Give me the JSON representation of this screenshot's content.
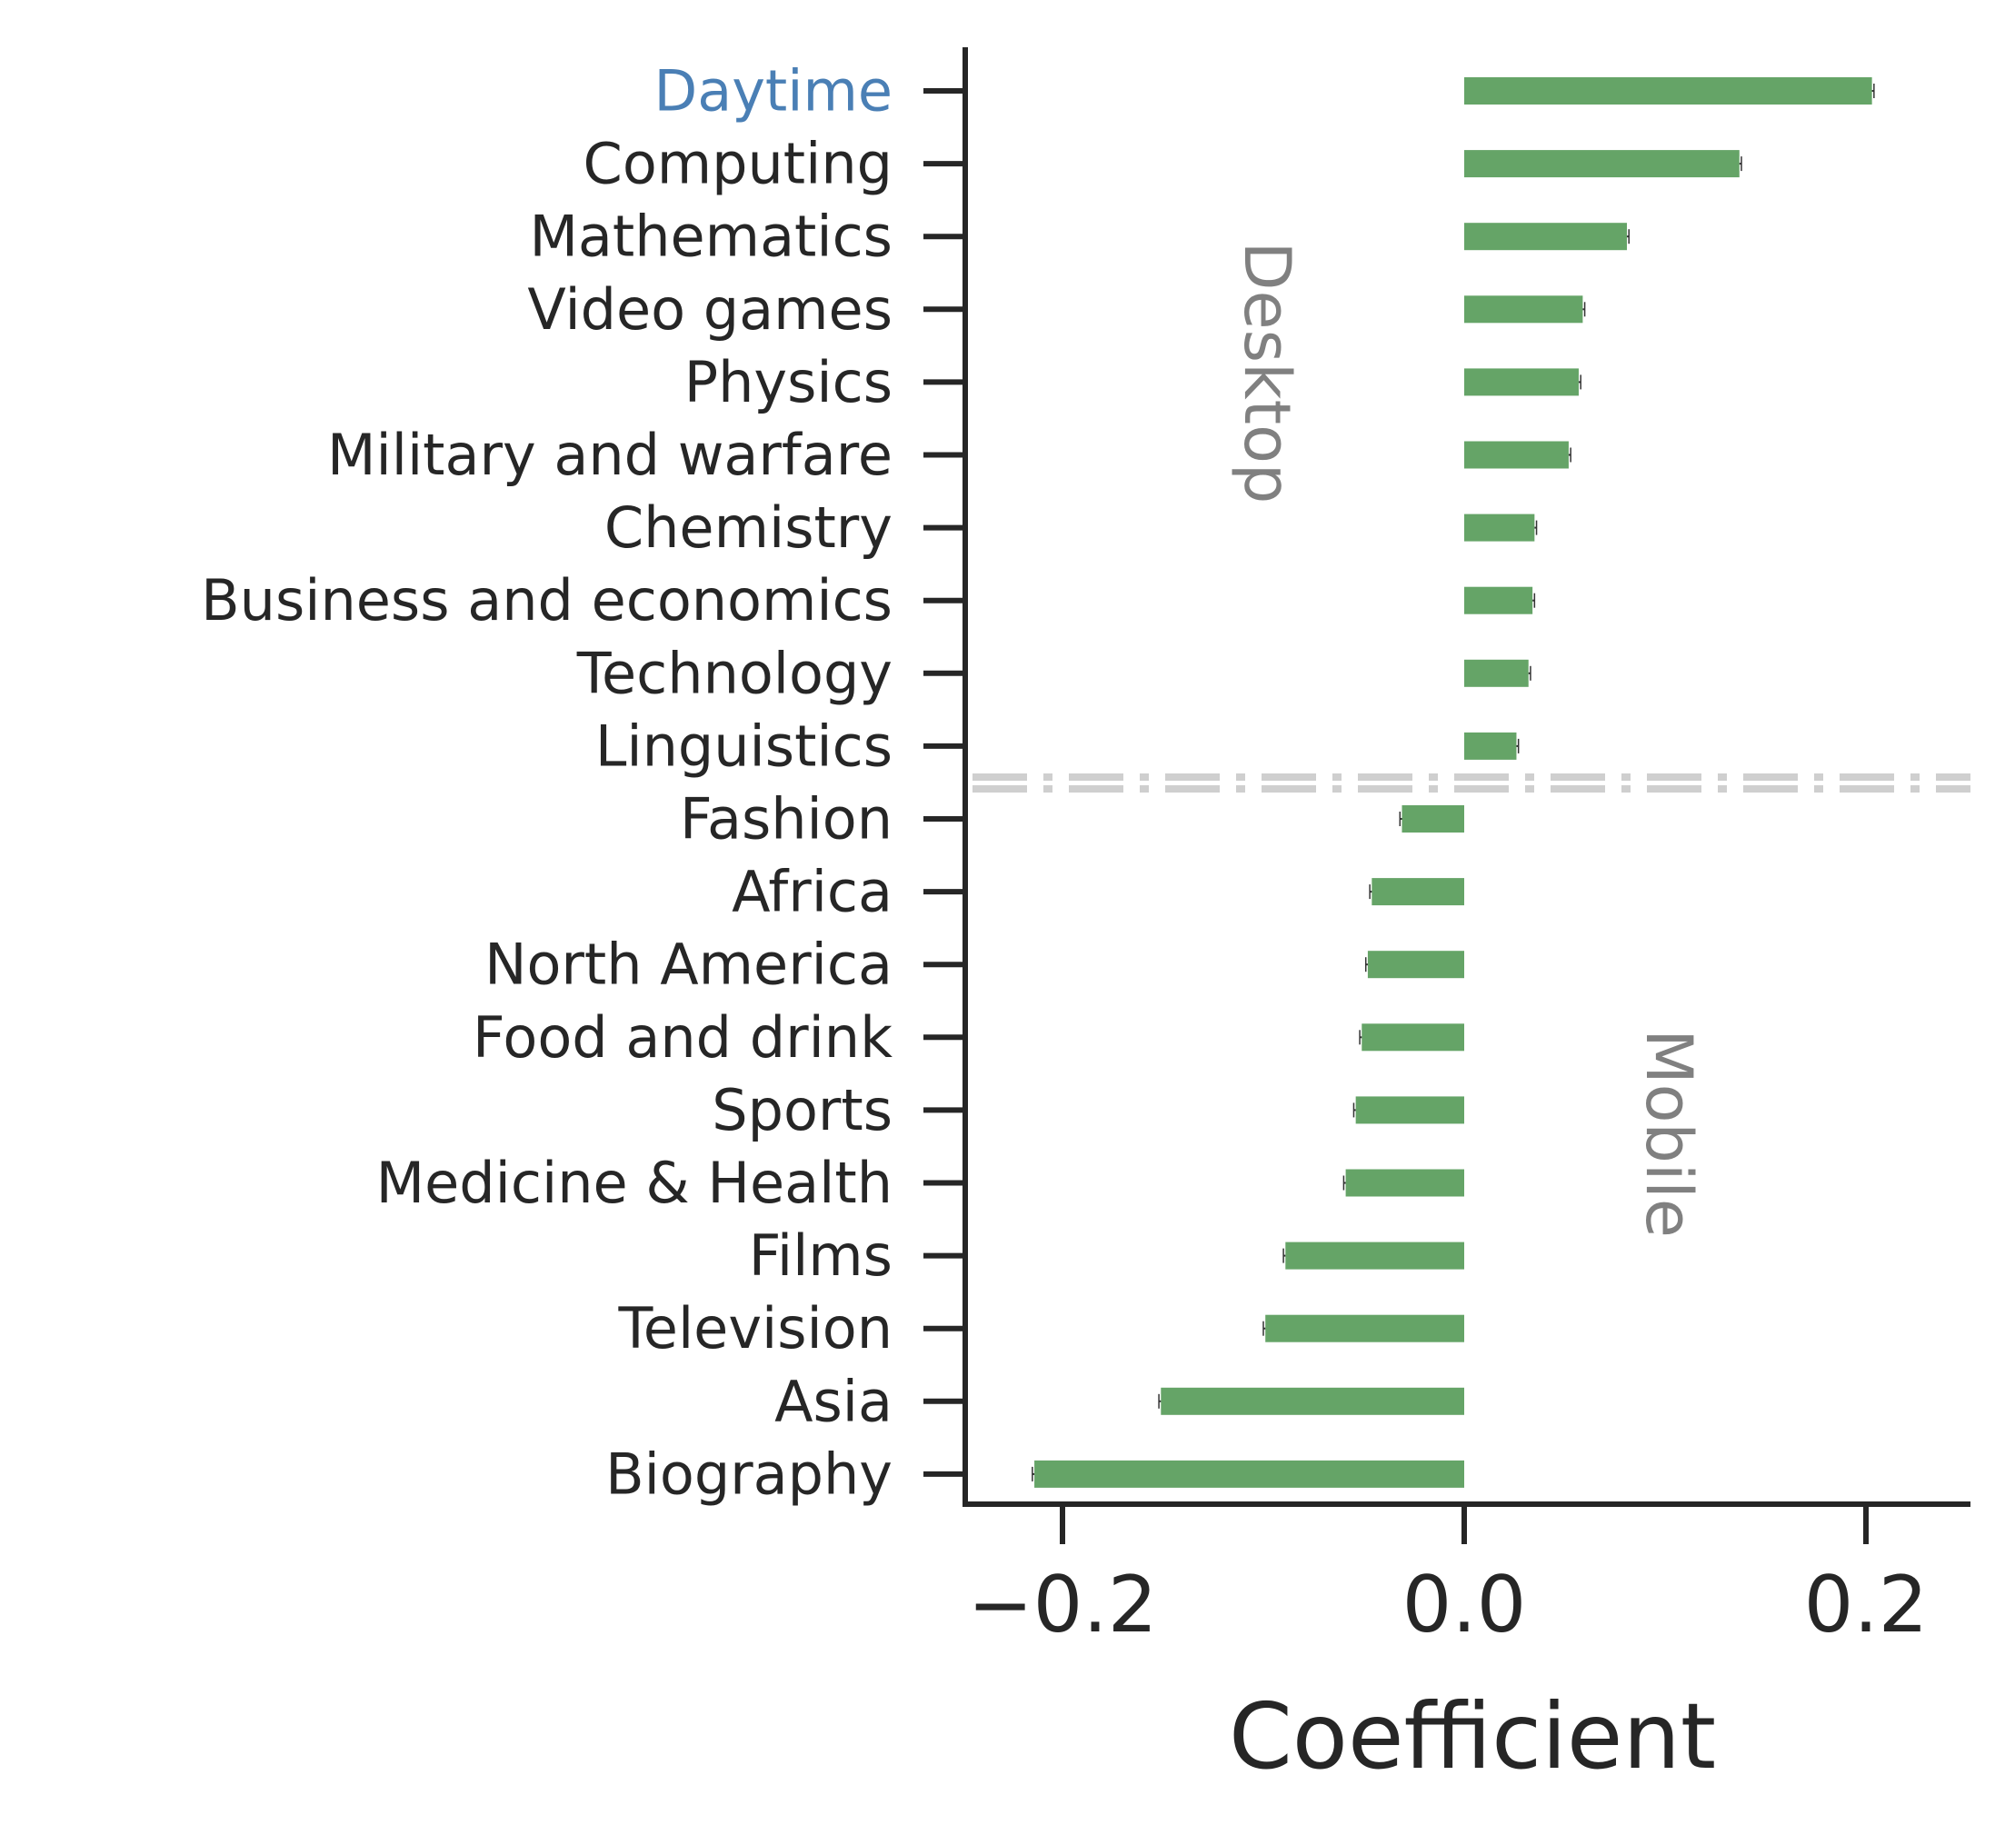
{
  "chart_data": {
    "type": "bar",
    "orientation": "horizontal",
    "categories": [
      "Daytime",
      "Computing",
      "Mathematics",
      "Video games",
      "Physics",
      "Military and warfare",
      "Chemistry",
      "Business and economics",
      "Technology",
      "Linguistics",
      "Fashion",
      "Africa",
      "North America",
      "Food and drink",
      "Sports",
      "Medicine & Health",
      "Films",
      "Television",
      "Asia",
      "Biography"
    ],
    "values": [
      0.203,
      0.137,
      0.081,
      0.059,
      0.057,
      0.052,
      0.035,
      0.034,
      0.032,
      0.026,
      -0.031,
      -0.046,
      -0.048,
      -0.051,
      -0.054,
      -0.059,
      -0.089,
      -0.099,
      -0.151,
      -0.214
    ],
    "errors": [
      0.001,
      0.001,
      0.001,
      0.001,
      0.001,
      0.001,
      0.001,
      0.001,
      0.001,
      0.001,
      0.001,
      0.001,
      0.001,
      0.001,
      0.001,
      0.001,
      0.001,
      0.001,
      0.001,
      0.001
    ],
    "highlighted_category": "Daytime",
    "xlabel": "Coefficient",
    "ylabel": "",
    "xlim": [
      -0.25,
      0.25
    ],
    "xticks": [
      -0.2,
      0.0,
      0.2
    ],
    "xtick_labels": [
      "−0.2",
      "0.0",
      "0.2"
    ],
    "annotations": [
      {
        "text": "Desktop",
        "group": "positive",
        "rotation": "90"
      },
      {
        "text": "Mobile",
        "group": "negative",
        "rotation": "90"
      }
    ],
    "separator": {
      "between": [
        "Linguistics",
        "Fashion"
      ],
      "style": "dash-dot"
    },
    "grid": false,
    "colors": {
      "bar": "#65a467",
      "highlight_label": "#4a7fb5",
      "label": "#262626",
      "annotation": "#808080",
      "separator": "#cfcfcf",
      "axis": "#262626"
    }
  }
}
